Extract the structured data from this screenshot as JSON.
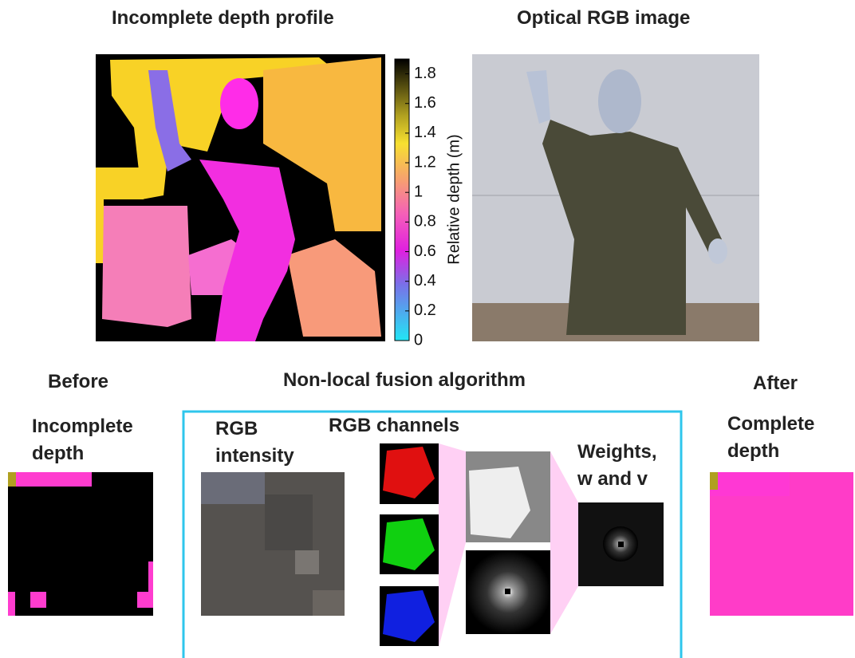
{
  "panels": {
    "depth_title": "Incomplete depth profile",
    "rgb_title": "Optical RGB image"
  },
  "colorbar": {
    "label": "Relative depth (m)",
    "lim": [
      0,
      1.9
    ],
    "ticks": [
      0,
      0.2,
      0.4,
      0.6,
      0.8,
      1,
      1.2,
      1.4,
      1.6,
      1.8
    ]
  },
  "bottom": {
    "before": "Before",
    "fusion_title": "Non-local fusion algorithm",
    "after": "After",
    "incomplete_depth": "Incomplete depth",
    "rgb_intensity": "RGB intensity",
    "rgb_channels": "RGB channels",
    "weights": "Weights, w and v",
    "complete_depth": "Complete depth"
  }
}
